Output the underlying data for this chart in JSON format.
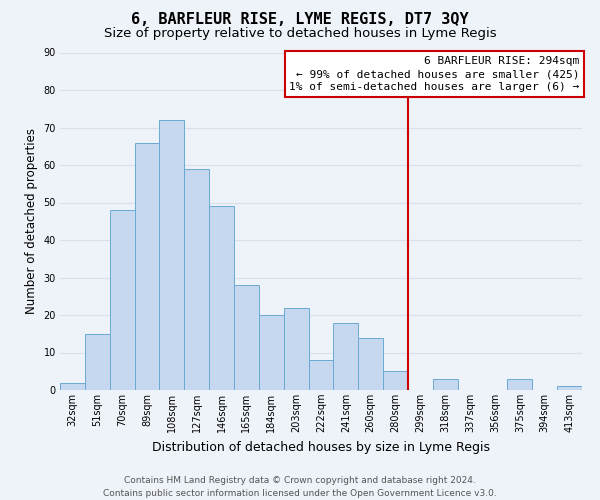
{
  "title": "6, BARFLEUR RISE, LYME REGIS, DT7 3QY",
  "subtitle": "Size of property relative to detached houses in Lyme Regis",
  "xlabel": "Distribution of detached houses by size in Lyme Regis",
  "ylabel": "Number of detached properties",
  "bin_labels": [
    "32sqm",
    "51sqm",
    "70sqm",
    "89sqm",
    "108sqm",
    "127sqm",
    "146sqm",
    "165sqm",
    "184sqm",
    "203sqm",
    "222sqm",
    "241sqm",
    "260sqm",
    "280sqm",
    "299sqm",
    "318sqm",
    "337sqm",
    "356sqm",
    "375sqm",
    "394sqm",
    "413sqm"
  ],
  "bar_heights": [
    2,
    15,
    48,
    66,
    72,
    59,
    49,
    28,
    20,
    22,
    8,
    18,
    14,
    5,
    0,
    3,
    0,
    0,
    3,
    0,
    1
  ],
  "bar_color": "#c5d8f0",
  "bar_edge_color": "#6aaad4",
  "vline_x_index": 14,
  "vline_color": "#cc0000",
  "annotation_title": "6 BARFLEUR RISE: 294sqm",
  "annotation_line1": "← 99% of detached houses are smaller (425)",
  "annotation_line2": "1% of semi-detached houses are larger (6) →",
  "annotation_box_facecolor": "#ffffff",
  "annotation_box_edgecolor": "#cc0000",
  "ylim": [
    0,
    90
  ],
  "yticks": [
    0,
    10,
    20,
    30,
    40,
    50,
    60,
    70,
    80,
    90
  ],
  "footer_line1": "Contains HM Land Registry data © Crown copyright and database right 2024.",
  "footer_line2": "Contains public sector information licensed under the Open Government Licence v3.0.",
  "bg_color": "#eef2f9",
  "grid_color": "#d8e0ec",
  "title_fontsize": 11,
  "subtitle_fontsize": 9.5,
  "ylabel_fontsize": 8.5,
  "xlabel_fontsize": 9,
  "tick_fontsize": 7,
  "annotation_fontsize": 8,
  "footer_fontsize": 6.5
}
